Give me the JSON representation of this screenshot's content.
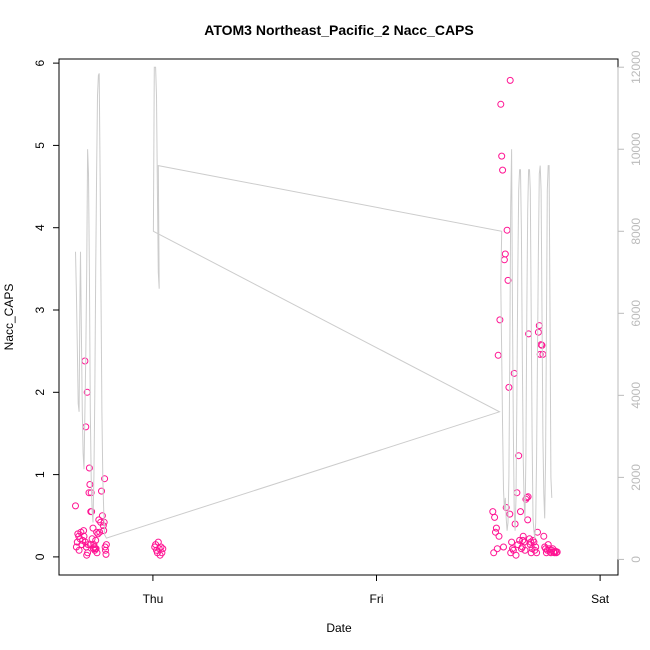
{
  "chart_data": {
    "type": "scatter",
    "title": "ATOM3 Northeast_Pacific_2 Nacc_CAPS",
    "xlabel": "Date",
    "ylabel": "Nacc_CAPS",
    "x_ticks": [
      "Thu",
      "Fri",
      "Sat"
    ],
    "x_range": [
      -0.21,
      1.04
    ],
    "y_range": [
      -0.22,
      6.05
    ],
    "y_ticks": [
      0,
      1,
      2,
      3,
      4,
      5,
      6
    ],
    "y2_range": [
      -380,
      12200
    ],
    "y2_ticks": [
      0,
      2000,
      4000,
      6000,
      8000,
      10000,
      12000
    ],
    "grid": false,
    "colors": {
      "points": "#ff1493",
      "line": "#cccccc",
      "axis": "#000000",
      "right_axis": "#bbbbbb"
    },
    "series": [
      {
        "marker": "open-circle",
        "axis": "left",
        "points": [
          [
            -0.173,
            0.62
          ],
          [
            -0.171,
            0.12
          ],
          [
            -0.169,
            0.18
          ],
          [
            -0.168,
            0.28
          ],
          [
            -0.166,
            0.25
          ],
          [
            -0.165,
            0.08
          ],
          [
            -0.163,
            0.22
          ],
          [
            -0.161,
            0.3
          ],
          [
            -0.159,
            0.15
          ],
          [
            -0.157,
            0.2
          ],
          [
            -0.155,
            0.32
          ],
          [
            -0.154,
            0.25
          ],
          [
            -0.152,
            2.38
          ],
          [
            -0.151,
            0.18
          ],
          [
            -0.15,
            1.58
          ],
          [
            -0.149,
            0.12
          ],
          [
            -0.148,
            0.02
          ],
          [
            -0.147,
            2.0
          ],
          [
            -0.146,
            0.05
          ],
          [
            -0.145,
            0.15
          ],
          [
            -0.143,
            0.78
          ],
          [
            -0.142,
            1.08
          ],
          [
            -0.141,
            0.88
          ],
          [
            -0.14,
            0.15
          ],
          [
            -0.139,
            0.55
          ],
          [
            -0.138,
            0.78
          ],
          [
            -0.137,
            0.55
          ],
          [
            -0.136,
            0.22
          ],
          [
            -0.134,
            0.35
          ],
          [
            -0.133,
            0.1
          ],
          [
            -0.132,
            0.15
          ],
          [
            -0.131,
            0.12
          ],
          [
            -0.13,
            0.08
          ],
          [
            -0.129,
            0.1
          ],
          [
            -0.128,
            0.2
          ],
          [
            -0.127,
            0.1
          ],
          [
            -0.126,
            0.3
          ],
          [
            -0.125,
            0.05
          ],
          [
            -0.123,
            0.28
          ],
          [
            -0.121,
            0.45
          ],
          [
            -0.119,
            0.3
          ],
          [
            -0.117,
            0.42
          ],
          [
            -0.115,
            0.8
          ],
          [
            -0.113,
            0.5
          ],
          [
            -0.111,
            0.38
          ],
          [
            -0.11,
            0.32
          ],
          [
            -0.109,
            0.42
          ],
          [
            -0.108,
            0.95
          ],
          [
            -0.107,
            0.12
          ],
          [
            -0.106,
            0.08
          ],
          [
            -0.105,
            0.03
          ],
          [
            -0.104,
            0.15
          ],
          [
            0.004,
            0.12
          ],
          [
            0.006,
            0.15
          ],
          [
            0.008,
            0.08
          ],
          [
            0.01,
            0.05
          ],
          [
            0.012,
            0.18
          ],
          [
            0.014,
            0.1
          ],
          [
            0.016,
            0.02
          ],
          [
            0.018,
            0.12
          ],
          [
            0.02,
            0.05
          ],
          [
            0.022,
            0.1
          ],
          [
            0.76,
            0.55
          ],
          [
            0.762,
            0.05
          ],
          [
            0.764,
            0.48
          ],
          [
            0.766,
            0.3
          ],
          [
            0.768,
            0.35
          ],
          [
            0.77,
            0.1
          ],
          [
            0.772,
            2.45
          ],
          [
            0.774,
            0.25
          ],
          [
            0.776,
            2.88
          ],
          [
            0.778,
            5.5
          ],
          [
            0.78,
            4.87
          ],
          [
            0.782,
            4.7
          ],
          [
            0.784,
            0.12
          ],
          [
            0.786,
            3.61
          ],
          [
            0.788,
            3.68
          ],
          [
            0.79,
            0.6
          ],
          [
            0.792,
            3.97
          ],
          [
            0.794,
            3.36
          ],
          [
            0.796,
            2.06
          ],
          [
            0.798,
            0.52
          ],
          [
            0.8,
            0.05
          ],
          [
            0.802,
            0.18
          ],
          [
            0.804,
            0.1
          ],
          [
            0.806,
            0.08
          ],
          [
            0.808,
            2.23
          ],
          [
            0.81,
            0.4
          ],
          [
            0.812,
            0.02
          ],
          [
            0.814,
            0.78
          ],
          [
            0.816,
            0.15
          ],
          [
            0.818,
            1.23
          ],
          [
            0.82,
            0.2
          ],
          [
            0.822,
            0.55
          ],
          [
            0.824,
            0.1
          ],
          [
            0.826,
            0.12
          ],
          [
            0.828,
            0.25
          ],
          [
            0.83,
            0.18
          ],
          [
            0.832,
            0.08
          ],
          [
            0.834,
            0.7
          ],
          [
            0.836,
            0.72
          ],
          [
            0.838,
            0.45
          ],
          [
            0.84,
            2.71
          ],
          [
            0.842,
            0.22
          ],
          [
            0.844,
            0.15
          ],
          [
            0.846,
            0.05
          ],
          [
            0.848,
            0.1
          ],
          [
            0.85,
            0.2
          ],
          [
            0.852,
            0.18
          ],
          [
            0.854,
            0.08
          ],
          [
            0.856,
            0.12
          ],
          [
            0.858,
            0.05
          ],
          [
            0.86,
            0.3
          ],
          [
            0.862,
            2.73
          ],
          [
            0.864,
            2.81
          ],
          [
            0.866,
            2.46
          ],
          [
            0.868,
            2.58
          ],
          [
            0.87,
            2.57
          ],
          [
            0.872,
            2.46
          ],
          [
            0.874,
            0.25
          ],
          [
            0.876,
            0.12
          ],
          [
            0.878,
            0.1
          ],
          [
            0.88,
            0.05
          ],
          [
            0.882,
            0.08
          ],
          [
            0.884,
            0.15
          ],
          [
            0.886,
            0.1
          ],
          [
            0.888,
            0.06
          ],
          [
            0.89,
            0.05
          ],
          [
            0.892,
            0.08
          ],
          [
            0.894,
            0.1
          ],
          [
            0.896,
            0.06
          ],
          [
            0.898,
            0.05
          ],
          [
            0.9,
            0.07
          ],
          [
            0.902,
            0.05
          ],
          [
            0.904,
            0.06
          ],
          [
            0.799,
            5.79
          ],
          [
            0.827,
            0.2
          ],
          [
            0.839,
            0.73
          ],
          [
            0.845,
            0.18
          ]
        ]
      },
      {
        "marker": "line",
        "axis": "right",
        "points": [
          [
            -0.173,
            7500
          ],
          [
            -0.171,
            6500
          ],
          [
            -0.169,
            5200
          ],
          [
            -0.167,
            3800
          ],
          [
            -0.165,
            3600
          ],
          [
            -0.163,
            6500
          ],
          [
            -0.162,
            7500
          ],
          [
            -0.16,
            5500
          ],
          [
            -0.158,
            3600
          ],
          [
            -0.156,
            2600
          ],
          [
            -0.154,
            2200
          ],
          [
            -0.152,
            3600
          ],
          [
            -0.15,
            5000
          ],
          [
            -0.148,
            7000
          ],
          [
            -0.146,
            10000
          ],
          [
            -0.144,
            9400
          ],
          [
            -0.142,
            7000
          ],
          [
            -0.14,
            3600
          ],
          [
            -0.138,
            2000
          ],
          [
            -0.136,
            1200
          ],
          [
            -0.134,
            900
          ],
          [
            -0.132,
            2000
          ],
          [
            -0.13,
            4000
          ],
          [
            -0.128,
            7000
          ],
          [
            -0.126,
            9400
          ],
          [
            -0.124,
            11300
          ],
          [
            -0.122,
            11800
          ],
          [
            -0.12,
            11850
          ],
          [
            -0.118,
            9400
          ],
          [
            -0.116,
            6500
          ],
          [
            -0.114,
            3600
          ],
          [
            -0.112,
            2000
          ],
          [
            -0.11,
            1200
          ],
          [
            -0.108,
            600
          ],
          [
            -0.104,
            520
          ],
          [
            0.775,
            3600
          ],
          [
            0.001,
            8000
          ],
          [
            0.003,
            12000
          ],
          [
            0.006,
            12000
          ],
          [
            0.008,
            11300
          ],
          [
            0.01,
            9000
          ],
          [
            0.012,
            7000
          ],
          [
            0.014,
            6600
          ],
          [
            0.012,
            9600
          ],
          [
            0.78,
            8000
          ],
          [
            0.778,
            6700
          ],
          [
            0.78,
            5000
          ],
          [
            0.782,
            3200
          ],
          [
            0.784,
            1700
          ],
          [
            0.786,
            1200
          ],
          [
            0.788,
            1500
          ],
          [
            0.79,
            1000
          ],
          [
            0.792,
            700
          ],
          [
            0.794,
            900
          ],
          [
            0.796,
            2000
          ],
          [
            0.798,
            5000
          ],
          [
            0.8,
            8600
          ],
          [
            0.802,
            10000
          ],
          [
            0.804,
            6000
          ],
          [
            0.806,
            3000
          ],
          [
            0.808,
            1200
          ],
          [
            0.81,
            700
          ],
          [
            0.812,
            1500
          ],
          [
            0.814,
            4000
          ],
          [
            0.816,
            7000
          ],
          [
            0.818,
            9000
          ],
          [
            0.82,
            9500
          ],
          [
            0.822,
            9500
          ],
          [
            0.824,
            8000
          ],
          [
            0.826,
            5000
          ],
          [
            0.828,
            2500
          ],
          [
            0.83,
            1400
          ],
          [
            0.832,
            1000
          ],
          [
            0.834,
            2500
          ],
          [
            0.836,
            6000
          ],
          [
            0.838,
            8500
          ],
          [
            0.84,
            9500
          ],
          [
            0.842,
            9500
          ],
          [
            0.844,
            9000
          ],
          [
            0.846,
            6000
          ],
          [
            0.848,
            3000
          ],
          [
            0.85,
            1000
          ],
          [
            0.852,
            700
          ],
          [
            0.854,
            500
          ],
          [
            0.856,
            900
          ],
          [
            0.858,
            2500
          ],
          [
            0.86,
            5000
          ],
          [
            0.862,
            7500
          ],
          [
            0.864,
            9400
          ],
          [
            0.866,
            9600
          ],
          [
            0.868,
            9000
          ],
          [
            0.87,
            6000
          ],
          [
            0.872,
            3000
          ],
          [
            0.874,
            1600
          ],
          [
            0.876,
            1000
          ],
          [
            0.878,
            2500
          ],
          [
            0.88,
            5500
          ],
          [
            0.882,
            9000
          ],
          [
            0.884,
            9600
          ],
          [
            0.886,
            9600
          ],
          [
            0.888,
            6000
          ],
          [
            0.89,
            2000
          ],
          [
            0.892,
            1500
          ]
        ]
      }
    ]
  }
}
